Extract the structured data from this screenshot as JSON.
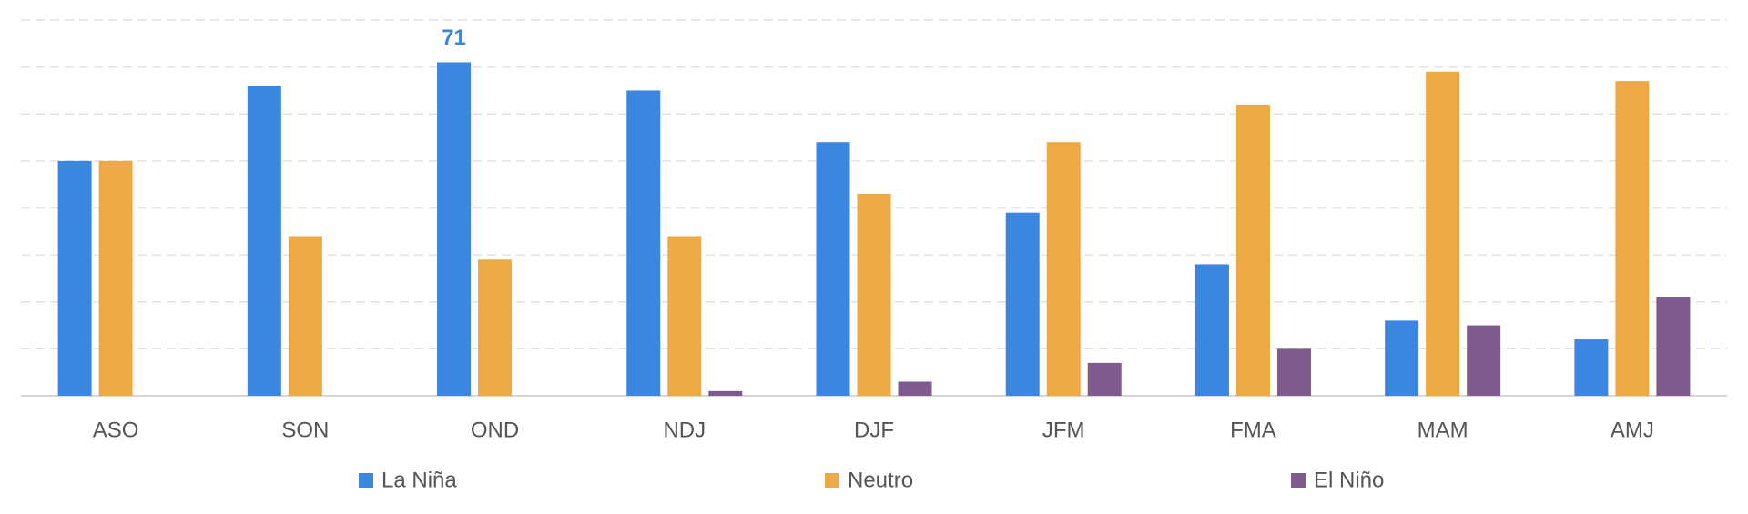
{
  "chart_data": {
    "type": "bar",
    "categories": [
      "ASO",
      "SON",
      "OND",
      "NDJ",
      "DJF",
      "JFM",
      "FMA",
      "MAM",
      "AMJ"
    ],
    "series": [
      {
        "name": "La Niña",
        "color": "#3a86e0",
        "values": [
          50,
          66,
          71,
          65,
          54,
          39,
          28,
          16,
          12
        ],
        "value_labels": [
          null,
          null,
          "71",
          null,
          null,
          null,
          null,
          null,
          null
        ]
      },
      {
        "name": "Neutro",
        "color": "#eda943",
        "values": [
          50,
          34,
          29,
          34,
          43,
          54,
          62,
          69,
          67
        ]
      },
      {
        "name": "El Niño",
        "color": "#7f5a8f",
        "values": [
          0,
          0,
          0,
          1,
          3,
          7,
          10,
          15,
          21
        ]
      }
    ],
    "ylim": [
      0,
      80
    ],
    "yticks": [
      0,
      10,
      20,
      30,
      40,
      50,
      60,
      70,
      80
    ],
    "grid": true,
    "legend": "bottom"
  }
}
